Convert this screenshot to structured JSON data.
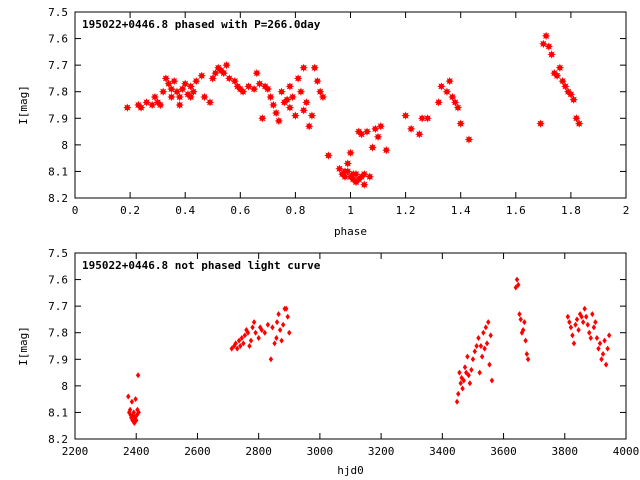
{
  "chart_data": [
    {
      "type": "scatter",
      "title": "195022+0446.8 phased with P=266.0day",
      "xlabel": "phase",
      "ylabel": "I[mag]",
      "xlim": [
        0,
        2
      ],
      "ylim": [
        7.5,
        8.2
      ],
      "y_inverted": true,
      "x_ticks": [
        "0",
        "0.2",
        "0.4",
        "0.6",
        "0.8",
        "1",
        "1.2",
        "1.4",
        "1.6",
        "1.8",
        "2"
      ],
      "y_ticks": [
        "7.5",
        "7.6",
        "7.7",
        "7.8",
        "7.9",
        "8",
        "8.1",
        "8.2"
      ],
      "marker": "filled-star",
      "color": "#ff0000",
      "grid": false,
      "series": [
        {
          "x": [
            0.19,
            0.23,
            0.24,
            0.26,
            0.28,
            0.29,
            0.3,
            0.31,
            0.32,
            0.33,
            0.34,
            0.35,
            0.35,
            0.36,
            0.37,
            0.38,
            0.38,
            0.39,
            0.4,
            0.41,
            0.42,
            0.42,
            0.43,
            0.44,
            0.46,
            0.47,
            0.49,
            0.5,
            0.51,
            0.52,
            0.53,
            0.54,
            0.55,
            0.56,
            0.58,
            0.59,
            0.6,
            0.61,
            0.63,
            0.65,
            0.66,
            0.67,
            0.68,
            0.69,
            0.7,
            0.71,
            0.72,
            0.73,
            0.74,
            0.75,
            0.76,
            0.77,
            0.78,
            0.78,
            0.79,
            0.8,
            0.81,
            0.82,
            0.83,
            0.83,
            0.84,
            0.85,
            0.86,
            0.87,
            0.88,
            0.89,
            0.9,
            0.92,
            0.96,
            0.97,
            0.98,
            0.98,
            0.99,
            0.99,
            1.0,
            1.0,
            1.01,
            1.01,
            1.02,
            1.02,
            1.03,
            1.03,
            1.04,
            1.04,
            1.05,
            1.05,
            1.06,
            1.07,
            1.08,
            1.09,
            1.1,
            1.11,
            1.13,
            1.2,
            1.22,
            1.25,
            1.26,
            1.28,
            1.32,
            1.33,
            1.35,
            1.36,
            1.37,
            1.38,
            1.39,
            1.4,
            1.43,
            1.69,
            1.7,
            1.71,
            1.72,
            1.73,
            1.74,
            1.75,
            1.76,
            1.77,
            1.78,
            1.79,
            1.8,
            1.81,
            1.82,
            1.83
          ],
          "y": [
            7.86,
            7.85,
            7.86,
            7.84,
            7.85,
            7.82,
            7.84,
            7.85,
            7.8,
            7.75,
            7.77,
            7.79,
            7.82,
            7.76,
            7.8,
            7.82,
            7.85,
            7.79,
            7.77,
            7.81,
            7.82,
            7.78,
            7.8,
            7.76,
            7.74,
            7.82,
            7.84,
            7.75,
            7.73,
            7.71,
            7.72,
            7.73,
            7.7,
            7.75,
            7.76,
            7.78,
            7.79,
            7.8,
            7.78,
            7.79,
            7.73,
            7.77,
            7.9,
            7.78,
            7.79,
            7.82,
            7.85,
            7.88,
            7.91,
            7.8,
            7.84,
            7.83,
            7.78,
            7.86,
            7.82,
            7.89,
            7.75,
            7.8,
            7.71,
            7.87,
            7.84,
            7.93,
            7.89,
            7.71,
            7.76,
            7.8,
            7.82,
            8.04,
            8.09,
            8.11,
            8.1,
            8.12,
            8.07,
            8.1,
            8.03,
            8.12,
            8.11,
            8.13,
            8.14,
            8.11,
            7.95,
            8.13,
            8.12,
            7.96,
            8.15,
            8.11,
            7.95,
            8.12,
            8.01,
            7.94,
            7.97,
            7.93,
            8.02,
            7.89,
            7.94,
            7.96,
            7.9,
            7.9,
            7.84,
            7.78,
            7.8,
            7.76,
            7.82,
            7.84,
            7.86,
            7.92,
            7.98,
            7.92,
            7.62,
            7.59,
            7.63,
            7.66,
            7.73,
            7.74,
            7.71,
            7.76,
            7.78,
            7.8,
            7.81,
            7.83,
            7.9,
            7.92
          ]
        }
      ]
    },
    {
      "type": "scatter",
      "title": "195022+0446.8 not phased light curve",
      "xlabel": "hjd0",
      "ylabel": "I[mag]",
      "xlim": [
        2200,
        4000
      ],
      "ylim": [
        7.5,
        8.2
      ],
      "y_inverted": true,
      "x_ticks": [
        "2200",
        "2400",
        "2600",
        "2800",
        "3000",
        "3200",
        "3400",
        "3600",
        "3800",
        "4000"
      ],
      "y_ticks": [
        "7.5",
        "7.6",
        "7.7",
        "7.8",
        "7.9",
        "8",
        "8.1",
        "8.2"
      ],
      "marker": "filled-diamond",
      "color": "#ff0000",
      "grid": false,
      "series": [
        {
          "x": [
            2374,
            2377,
            2380,
            2382,
            2384,
            2386,
            2388,
            2390,
            2392,
            2394,
            2396,
            2398,
            2400,
            2402,
            2404,
            2406,
            2408,
            2712,
            2720,
            2725,
            2730,
            2736,
            2740,
            2745,
            2750,
            2755,
            2760,
            2765,
            2770,
            2775,
            2780,
            2785,
            2790,
            2800,
            2805,
            2810,
            2820,
            2830,
            2840,
            2845,
            2852,
            2858,
            2860,
            2865,
            2870,
            2875,
            2880,
            2885,
            2890,
            2895,
            2900,
            3448,
            3452,
            3456,
            3460,
            3463,
            3466,
            3470,
            3474,
            3478,
            3482,
            3486,
            3490,
            3495,
            3500,
            3506,
            3512,
            3518,
            3522,
            3526,
            3530,
            3534,
            3538,
            3542,
            3546,
            3550,
            3554,
            3558,
            3562,
            3640,
            3644,
            3648,
            3652,
            3656,
            3660,
            3664,
            3668,
            3672,
            3676,
            3680,
            3810,
            3815,
            3820,
            3825,
            3830,
            3835,
            3840,
            3845,
            3850,
            3855,
            3860,
            3865,
            3870,
            3875,
            3880,
            3885,
            3890,
            3895,
            3900,
            3905,
            3910,
            3915,
            3920,
            3925,
            3930,
            3935,
            3940,
            3945
          ],
          "y": [
            8.04,
            8.1,
            8.09,
            8.11,
            8.12,
            8.06,
            8.13,
            8.11,
            8.1,
            8.14,
            8.12,
            8.05,
            8.13,
            8.11,
            8.09,
            7.96,
            8.1,
            7.86,
            7.85,
            7.84,
            7.86,
            7.83,
            7.85,
            7.82,
            7.84,
            7.81,
            7.79,
            7.8,
            7.85,
            7.83,
            7.78,
            7.76,
            7.8,
            7.82,
            7.78,
            7.79,
            7.8,
            7.77,
            7.9,
            7.78,
            7.84,
            7.82,
            7.76,
            7.73,
            7.79,
            7.83,
            7.77,
            7.71,
            7.71,
            7.74,
            7.8,
            8.06,
            8.03,
            7.95,
            7.99,
            7.97,
            8.01,
            7.98,
            7.93,
            7.95,
            7.89,
            7.96,
            7.99,
            7.94,
            7.9,
            7.87,
            7.85,
            7.82,
            7.95,
            7.85,
            7.89,
            7.8,
            7.86,
            7.78,
            7.84,
            7.76,
            7.92,
            7.81,
            7.98,
            7.63,
            7.6,
            7.62,
            7.73,
            7.75,
            7.8,
            7.79,
            7.76,
            7.83,
            7.88,
            7.9,
            7.74,
            7.76,
            7.78,
            7.81,
            7.84,
            7.77,
            7.75,
            7.79,
            7.73,
            7.74,
            7.76,
            7.71,
            7.74,
            7.77,
            7.8,
            7.82,
            7.73,
            7.78,
            7.76,
            7.82,
            7.86,
            7.84,
            7.9,
            7.88,
            7.83,
            7.92,
            7.86,
            7.81
          ]
        }
      ]
    }
  ]
}
